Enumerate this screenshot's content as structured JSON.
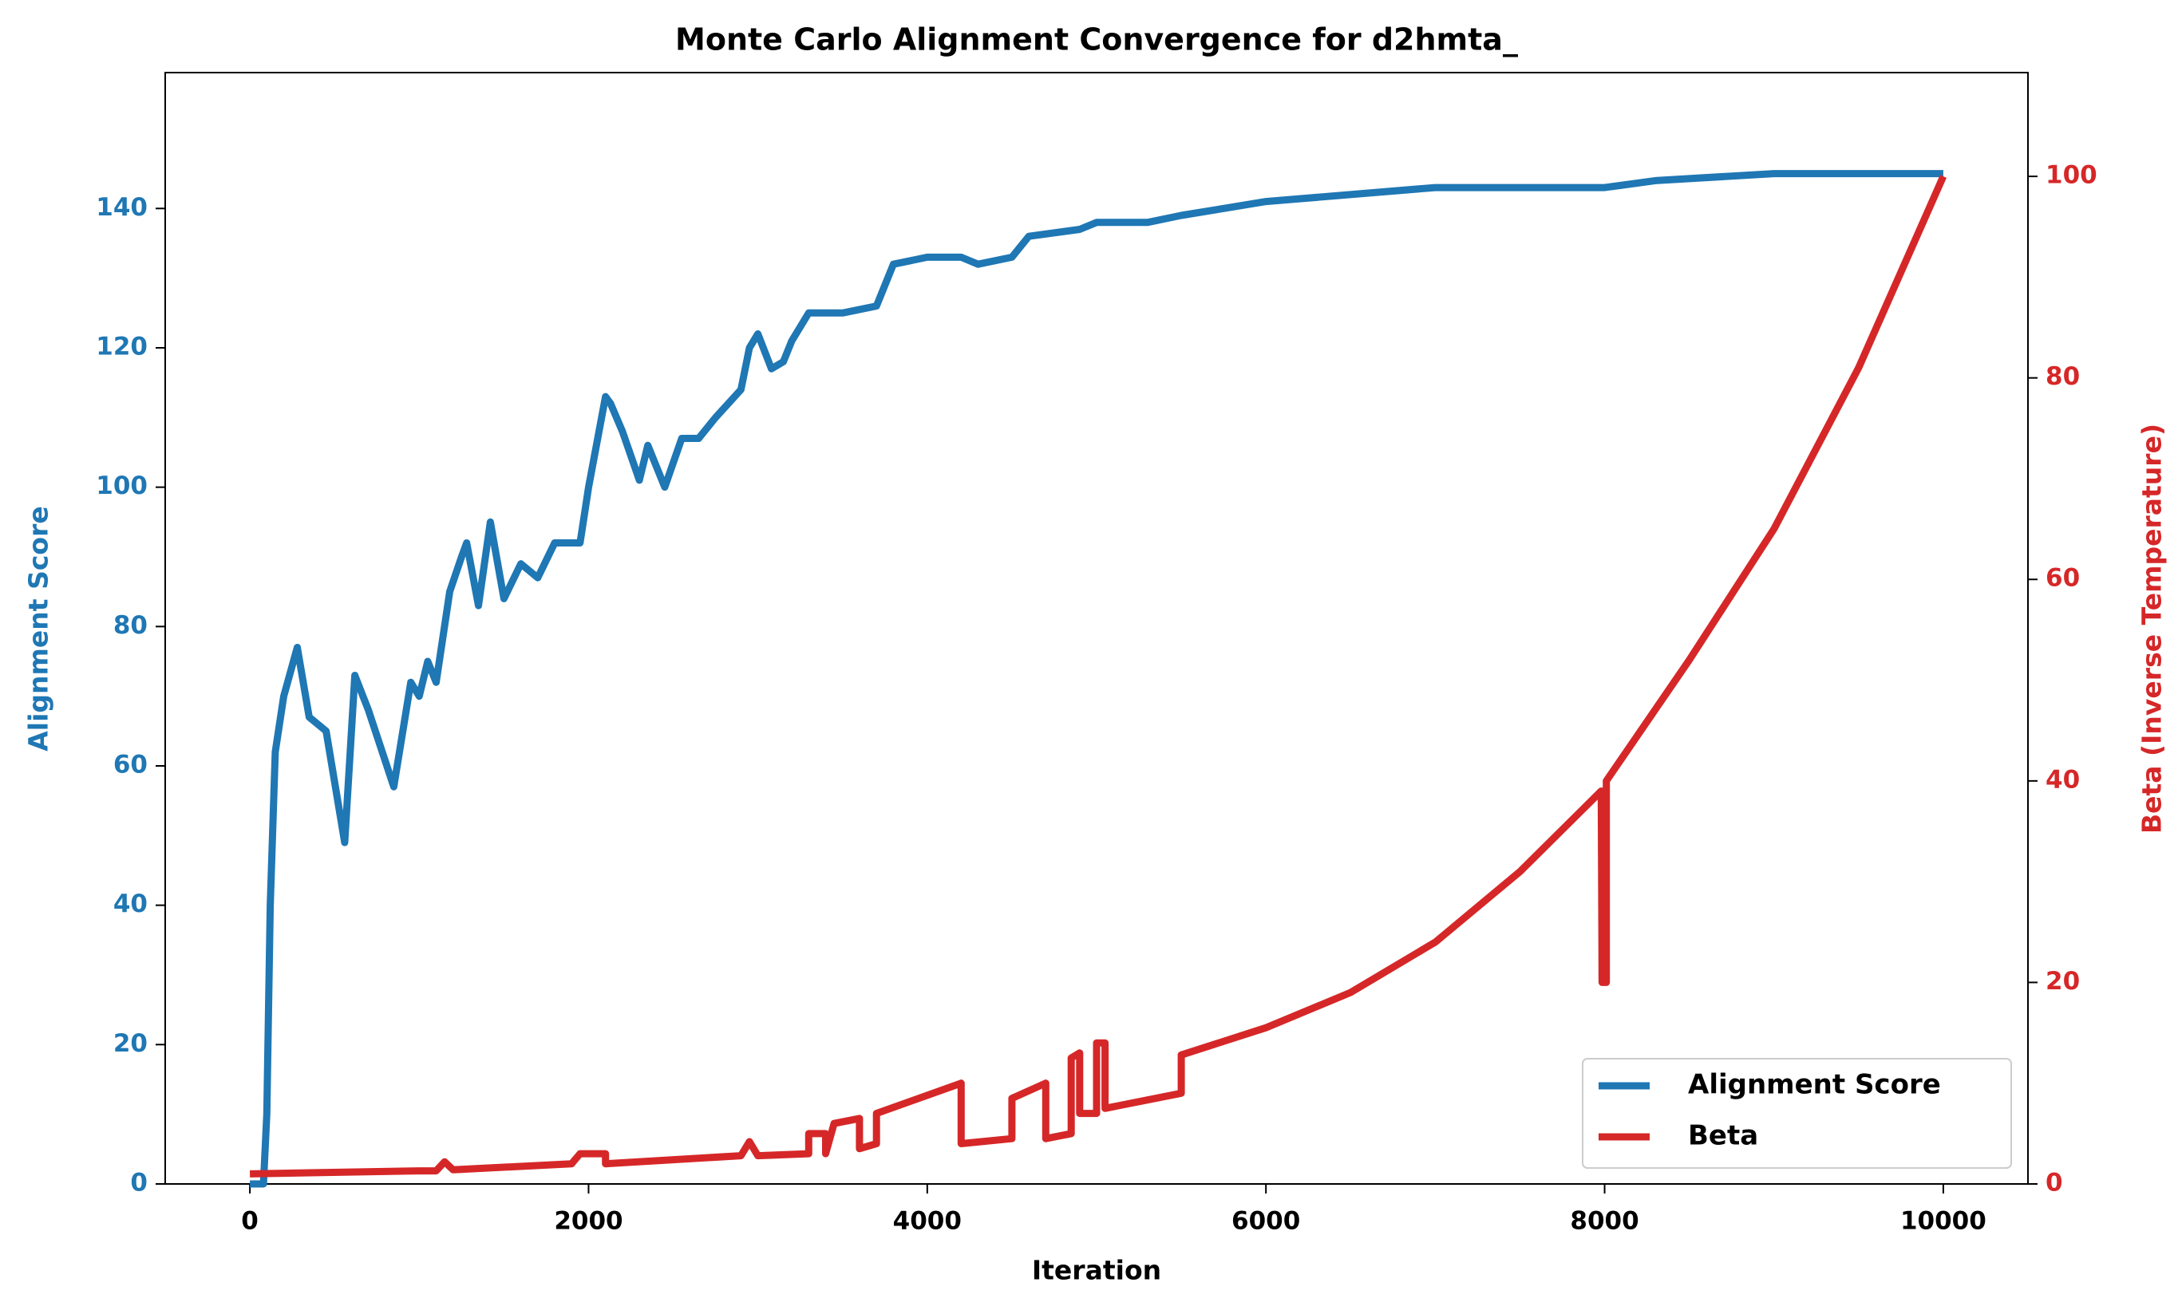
{
  "chart_data": {
    "type": "line",
    "title": "Monte Carlo Alignment Convergence for d2hmta_",
    "xlabel": "Iteration",
    "ylabel": "Alignment Score",
    "y2label": "Beta (Inverse Temperature)",
    "xlim": [
      -500,
      10500
    ],
    "xticks": [
      0,
      2000,
      4000,
      6000,
      8000,
      10000
    ],
    "ylim": [
      0,
      159.5
    ],
    "yticks": [
      0,
      20,
      40,
      60,
      80,
      100,
      120,
      140
    ],
    "y2lim": [
      0,
      110.3
    ],
    "y2ticks": [
      0,
      20,
      40,
      60,
      80,
      100
    ],
    "grid": false,
    "legend": "lower right",
    "series": [
      {
        "name": "Alignment Score",
        "color": "#1f77b4",
        "x": [
          0,
          80,
          100,
          120,
          150,
          200,
          280,
          350,
          450,
          560,
          620,
          700,
          850,
          950,
          1000,
          1050,
          1100,
          1180,
          1250,
          1280,
          1350,
          1420,
          1500,
          1600,
          1700,
          1800,
          1950,
          2000,
          2100,
          2130,
          2200,
          2300,
          2350,
          2450,
          2550,
          2650,
          2750,
          2900,
          2950,
          3000,
          3080,
          3150,
          3200,
          3300,
          3500,
          3700,
          3800,
          4000,
          4200,
          4300,
          4500,
          4600,
          4900,
          5000,
          5300,
          5500,
          6000,
          7000,
          8000,
          8300,
          9000,
          10000
        ],
        "values": [
          0,
          0,
          10,
          40,
          62,
          70,
          77,
          67,
          65,
          49,
          73,
          68,
          57,
          72,
          70,
          75,
          72,
          85,
          90,
          92,
          83,
          95,
          84,
          89,
          87,
          92,
          92,
          100,
          113,
          112,
          108,
          101,
          106,
          100,
          107,
          107,
          110,
          114,
          120,
          122,
          117,
          118,
          121,
          125,
          125,
          126,
          132,
          133,
          133,
          132,
          133,
          136,
          137,
          138,
          138,
          139,
          141,
          143,
          143,
          144,
          145,
          145
        ]
      },
      {
        "name": "Beta",
        "color": "#d62728",
        "axis": "y2",
        "x": [
          0,
          1000,
          1100,
          1150,
          1200,
          1900,
          1950,
          2100,
          2100,
          2900,
          2950,
          3000,
          3300,
          3300,
          3400,
          3400,
          3450,
          3600,
          3600,
          3700,
          3700,
          4200,
          4200,
          4500,
          4500,
          4700,
          4700,
          4850,
          4850,
          4900,
          4900,
          5000,
          5000,
          5050,
          5050,
          5500,
          5500,
          6000,
          6500,
          7000,
          7500,
          7980,
          7985,
          8010,
          8010,
          8500,
          9000,
          9500,
          10000
        ],
        "values": [
          1,
          1.3,
          1.3,
          2.2,
          1.4,
          2,
          3,
          3,
          2,
          2.8,
          4.2,
          2.8,
          3,
          5,
          5,
          3,
          6,
          6.5,
          3.5,
          4,
          7,
          10,
          4,
          4.5,
          8.5,
          10,
          4.5,
          5,
          12.5,
          13,
          7,
          7,
          14,
          14,
          7.5,
          9,
          12.8,
          15.5,
          19,
          24,
          31,
          39,
          20,
          20,
          40,
          52,
          65,
          81,
          100
        ]
      }
    ]
  }
}
